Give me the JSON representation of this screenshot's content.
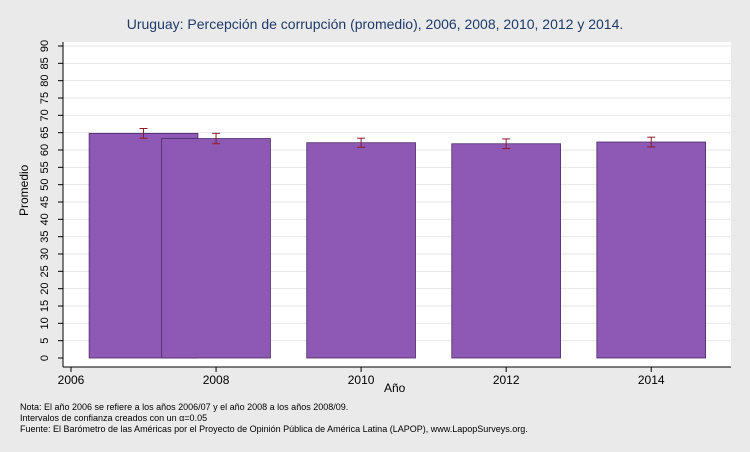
{
  "chart_data": {
    "type": "bar",
    "title": "Uruguay: Percepción de corrupción (promedio), 2006, 2008, 2010, 2012 y 2014.",
    "xlabel": "Año",
    "ylabel": "Promedio",
    "ylim": [
      0,
      90
    ],
    "yticks": [
      0,
      5,
      10,
      15,
      20,
      25,
      30,
      35,
      40,
      45,
      50,
      55,
      60,
      65,
      70,
      75,
      80,
      85,
      90
    ],
    "xlim": [
      2006,
      2015.1
    ],
    "xticks": [
      "2006",
      "2008",
      "2010",
      "2012",
      "2014"
    ],
    "grid": true,
    "bar_color": "#8e59b4",
    "errorbar_color": "#8b1a2b",
    "bars": [
      {
        "x_start": 2006.25,
        "x_end": 2007.75,
        "value": 64.8,
        "ci_low": 63.4,
        "ci_high": 66.2
      },
      {
        "x_start": 2007.25,
        "x_end": 2008.75,
        "value": 63.3,
        "ci_low": 61.8,
        "ci_high": 64.8
      },
      {
        "x_start": 2009.25,
        "x_end": 2010.75,
        "value": 62.1,
        "ci_low": 60.8,
        "ci_high": 63.4
      },
      {
        "x_start": 2011.25,
        "x_end": 2012.75,
        "value": 61.8,
        "ci_low": 60.4,
        "ci_high": 63.2
      },
      {
        "x_start": 2013.25,
        "x_end": 2014.75,
        "value": 62.3,
        "ci_low": 60.9,
        "ci_high": 63.7
      }
    ]
  },
  "notes": {
    "line1": "Nota: El año 2006 se refiere a los años 2006/07 y el año 2008 a los años 2008/09.",
    "line2": "Intervalos de confianza creados con un α=0.05",
    "line3": "Fuente: El Barómetro de las Américas por el Proyecto de Opinión Pública de América Latina (LAPOP), www.LapopSurveys.org."
  }
}
